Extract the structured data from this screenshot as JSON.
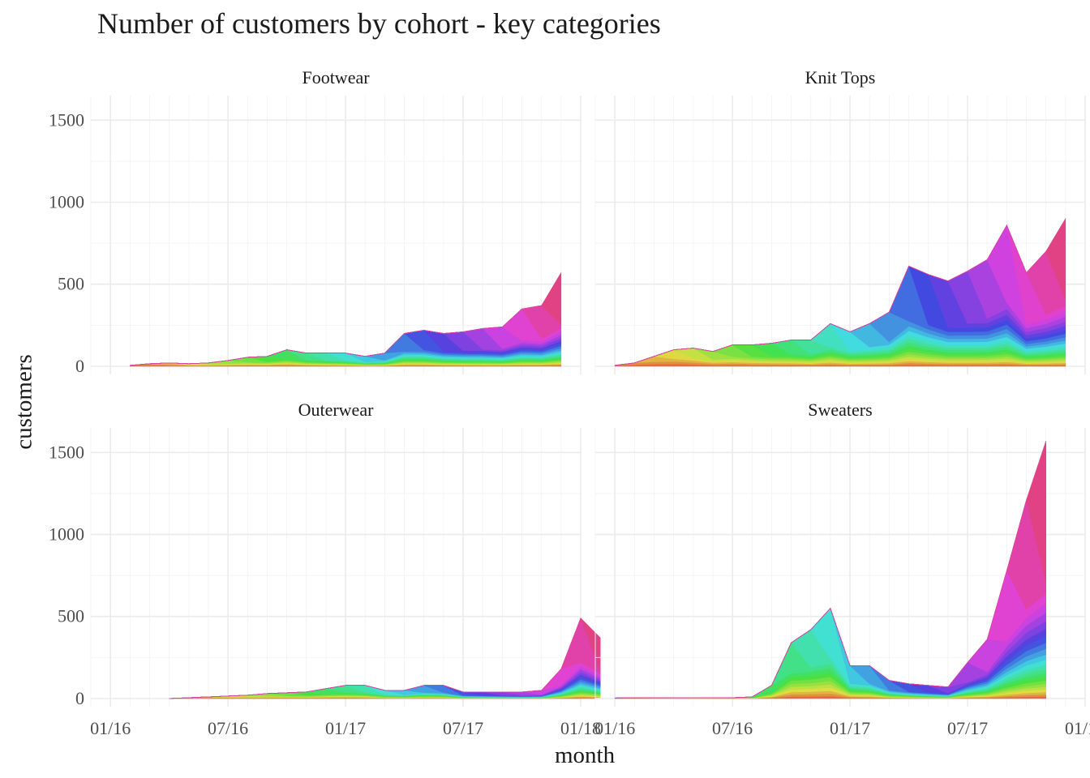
{
  "title": "Number of customers by cohort - key categories",
  "xlabel": "month",
  "ylabel": "customers",
  "chart_data": {
    "type": "area",
    "stacked": true,
    "facet_layout": "2x2",
    "series_note_hidden": true,
    "x_ticks": [
      "2016-01",
      "2016-07",
      "2017-01",
      "2017-07",
      "2018-01"
    ],
    "x_tick_labels": [
      "01/16",
      "07/16",
      "01/17",
      "07/17",
      "01/18"
    ],
    "xlim": [
      "2015-12",
      "2018-01"
    ],
    "y_ticks": [
      0,
      500,
      1000,
      1500
    ],
    "ylim": [
      -50,
      1650
    ],
    "grid": true,
    "legend": "none",
    "months": [
      "2016-02",
      "2016-03",
      "2016-04",
      "2016-05",
      "2016-06",
      "2016-07",
      "2016-08",
      "2016-09",
      "2016-10",
      "2016-11",
      "2016-12",
      "2017-01",
      "2017-02",
      "2017-03",
      "2017-04",
      "2017-05",
      "2017-06",
      "2017-07",
      "2017-08",
      "2017-09",
      "2017-10",
      "2017-11",
      "2017-12"
    ],
    "panels": [
      {
        "name": "Footwear",
        "start_month": "2016-02",
        "totals": [
          10,
          15,
          20,
          15,
          20,
          35,
          55,
          60,
          100,
          80,
          80,
          80,
          60,
          80,
          200,
          220,
          200,
          210,
          230,
          240,
          350,
          370,
          570
        ]
      },
      {
        "name": "Knit Tops",
        "start_month": "2016-01",
        "totals": [
          10,
          20,
          60,
          100,
          110,
          90,
          130,
          130,
          140,
          160,
          160,
          260,
          210,
          260,
          330,
          610,
          560,
          520,
          580,
          650,
          860,
          570,
          700,
          900
        ]
      },
      {
        "name": "Outerwear",
        "start_month": "2016-04",
        "totals": [
          0,
          5,
          10,
          15,
          20,
          30,
          35,
          40,
          60,
          80,
          80,
          50,
          50,
          80,
          80,
          40,
          40,
          40,
          40,
          50,
          180,
          490,
          370
        ]
      },
      {
        "name": "Sweaters",
        "start_month": "2016-01",
        "totals": [
          5,
          5,
          5,
          5,
          5,
          5,
          5,
          10,
          80,
          340,
          420,
          550,
          200,
          200,
          110,
          90,
          80,
          70,
          220,
          360,
          780,
          1210,
          1570
        ]
      }
    ]
  }
}
